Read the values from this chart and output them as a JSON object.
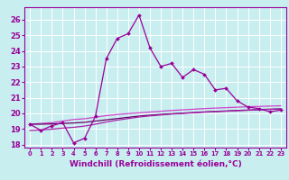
{
  "x": [
    0,
    1,
    2,
    3,
    4,
    5,
    6,
    7,
    8,
    9,
    10,
    11,
    12,
    13,
    14,
    15,
    16,
    17,
    18,
    19,
    20,
    21,
    22,
    23
  ],
  "line_main": [
    19.3,
    18.9,
    19.2,
    19.4,
    18.1,
    18.4,
    19.8,
    23.5,
    24.8,
    25.1,
    26.3,
    24.2,
    23.0,
    23.2,
    22.3,
    22.8,
    22.5,
    21.5,
    21.6,
    20.8,
    20.4,
    20.3,
    20.1,
    20.2
  ],
  "line_flat1": [
    19.3,
    19.35,
    19.4,
    19.5,
    19.6,
    19.65,
    19.75,
    19.85,
    19.92,
    19.98,
    20.03,
    20.08,
    20.13,
    20.18,
    20.22,
    20.26,
    20.3,
    20.33,
    20.36,
    20.39,
    20.42,
    20.44,
    20.46,
    20.48
  ],
  "line_flat2": [
    19.3,
    19.3,
    19.32,
    19.35,
    19.38,
    19.42,
    19.5,
    19.58,
    19.66,
    19.74,
    19.82,
    19.88,
    19.93,
    19.97,
    20.01,
    20.05,
    20.09,
    20.12,
    20.15,
    20.18,
    20.21,
    20.24,
    20.26,
    20.28
  ],
  "line_flat3": [
    18.9,
    18.93,
    18.98,
    19.05,
    19.1,
    19.18,
    19.3,
    19.44,
    19.56,
    19.66,
    19.76,
    19.83,
    19.89,
    19.95,
    19.99,
    20.03,
    20.07,
    20.1,
    20.13,
    20.16,
    20.19,
    20.22,
    20.25,
    20.28
  ],
  "bg_color": "#c8eef0",
  "grid_color": "#ffffff",
  "line_color_main": "#990099",
  "line_color_flat1": "#cc44cc",
  "line_color_flat2": "#660066",
  "line_color_flat3": "#aa22aa",
  "xlabel": "Windchill (Refroidissement éolien,°C)",
  "ylim": [
    17.8,
    26.8
  ],
  "xlim": [
    -0.5,
    23.5
  ],
  "yticks": [
    18,
    19,
    20,
    21,
    22,
    23,
    24,
    25,
    26
  ],
  "xticks": [
    0,
    1,
    2,
    3,
    4,
    5,
    6,
    7,
    8,
    9,
    10,
    11,
    12,
    13,
    14,
    15,
    16,
    17,
    18,
    19,
    20,
    21,
    22,
    23
  ],
  "figsize": [
    3.2,
    2.0
  ],
  "dpi": 100
}
